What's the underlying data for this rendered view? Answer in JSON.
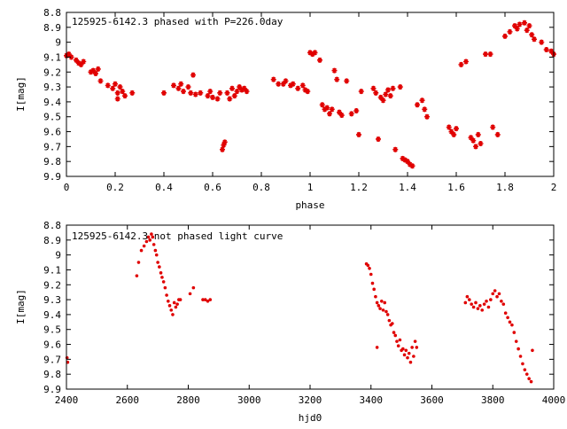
{
  "chart_data": [
    {
      "type": "scatter",
      "title": "125925-6142.3 phased with P=226.0day",
      "xlabel": "phase",
      "ylabel": "I[mag]",
      "xlim": [
        0,
        2
      ],
      "ylim": [
        8.8,
        9.9
      ],
      "y_inverted": true,
      "grid": false,
      "marker": "star",
      "color": "#e00000",
      "x_ticks": [
        "0",
        "0.2",
        "0.4",
        "0.6",
        "0.8",
        "1",
        "1.2",
        "1.4",
        "1.6",
        "1.8",
        "2"
      ],
      "y_ticks": [
        "8.8",
        "8.9",
        "9",
        "9.1",
        "9.2",
        "9.3",
        "9.4",
        "9.5",
        "9.6",
        "9.7",
        "9.8",
        "9.9"
      ],
      "series": [
        {
          "x": [
            0.0,
            0.01,
            0.02,
            0.04,
            0.05,
            0.06,
            0.07,
            0.1,
            0.11,
            0.12,
            0.13,
            0.14,
            0.17,
            0.19,
            0.2,
            0.21,
            0.21,
            0.22,
            0.23,
            0.24,
            0.27,
            0.4,
            0.44,
            0.46,
            0.47,
            0.48,
            0.5,
            0.51,
            0.52,
            0.53,
            0.55,
            0.58,
            0.59,
            0.6,
            0.62,
            0.63,
            0.64,
            0.645,
            0.65,
            0.66,
            0.67,
            0.68,
            0.69,
            0.7,
            0.71,
            0.72,
            0.73,
            0.74,
            0.85,
            0.87,
            0.89,
            0.9,
            0.92,
            0.93,
            0.95,
            0.97,
            0.98,
            0.99,
            1.0,
            1.01,
            1.02,
            1.04,
            1.05,
            1.06,
            1.07,
            1.08,
            1.09,
            1.1,
            1.11,
            1.12,
            1.13,
            1.15,
            1.17,
            1.19,
            1.2,
            1.21,
            1.26,
            1.27,
            1.28,
            1.29,
            1.3,
            1.31,
            1.32,
            1.33,
            1.34,
            1.35,
            1.37,
            1.38,
            1.39,
            1.4,
            1.41,
            1.42,
            1.44,
            1.46,
            1.47,
            1.48,
            1.57,
            1.58,
            1.59,
            1.6,
            1.62,
            1.64,
            1.66,
            1.67,
            1.68,
            1.69,
            1.7,
            1.72,
            1.74,
            1.75,
            1.77,
            1.8,
            1.82,
            1.84,
            1.85,
            1.86,
            1.88,
            1.89,
            1.9,
            1.91,
            1.92,
            1.95,
            1.97,
            1.99,
            2.0
          ],
          "y": [
            9.09,
            9.08,
            9.1,
            9.12,
            9.14,
            9.15,
            9.13,
            9.2,
            9.19,
            9.21,
            9.18,
            9.26,
            9.29,
            9.31,
            9.28,
            9.34,
            9.38,
            9.3,
            9.33,
            9.36,
            9.34,
            9.34,
            9.29,
            9.31,
            9.28,
            9.33,
            9.3,
            9.34,
            9.22,
            9.35,
            9.34,
            9.36,
            9.33,
            9.37,
            9.38,
            9.34,
            9.72,
            9.69,
            9.67,
            9.34,
            9.38,
            9.31,
            9.36,
            9.33,
            9.3,
            9.32,
            9.31,
            9.33,
            9.25,
            9.28,
            9.28,
            9.26,
            9.29,
            9.28,
            9.31,
            9.29,
            9.32,
            9.33,
            9.07,
            9.08,
            9.07,
            9.12,
            9.42,
            9.45,
            9.44,
            9.48,
            9.45,
            9.19,
            9.25,
            9.47,
            9.49,
            9.26,
            9.48,
            9.46,
            9.62,
            9.33,
            9.31,
            9.34,
            9.65,
            9.37,
            9.39,
            9.35,
            9.32,
            9.36,
            9.31,
            9.72,
            9.3,
            9.78,
            9.79,
            9.8,
            9.82,
            9.83,
            9.42,
            9.39,
            9.45,
            9.5,
            9.57,
            9.6,
            9.62,
            9.58,
            9.15,
            9.13,
            9.64,
            9.66,
            9.7,
            9.62,
            9.68,
            9.08,
            9.08,
            9.57,
            9.62,
            8.96,
            8.93,
            8.89,
            8.91,
            8.88,
            8.87,
            8.92,
            8.89,
            8.95,
            8.98,
            9.0,
            9.05,
            9.06,
            9.08
          ]
        }
      ]
    },
    {
      "type": "scatter",
      "title": "125925-6142.3 not phased light curve",
      "xlabel": "hjd0",
      "ylabel": "I[mag]",
      "xlim": [
        2400,
        4000
      ],
      "ylim": [
        8.8,
        9.9
      ],
      "y_inverted": true,
      "grid": false,
      "marker": "dot",
      "color": "#e00000",
      "x_ticks": [
        "2400",
        "2600",
        "2800",
        "3000",
        "3200",
        "3400",
        "3600",
        "3800",
        "4000"
      ],
      "y_ticks": [
        "8.8",
        "8.9",
        "9",
        "9.1",
        "9.2",
        "9.3",
        "9.4",
        "9.5",
        "9.6",
        "9.7",
        "9.8",
        "9.9"
      ],
      "series": [
        {
          "x": [
            2402,
            2404,
            2631,
            2637,
            2646,
            2655,
            2663,
            2669,
            2674,
            2679,
            2683,
            2687,
            2692,
            2696,
            2700,
            2705,
            2710,
            2714,
            2719,
            2724,
            2729,
            2734,
            2739,
            2744,
            2749,
            2754,
            2759,
            2764,
            2769,
            2774,
            2806,
            2817,
            2848,
            2856,
            2864,
            2872,
            3385,
            3390,
            3395,
            3400,
            3405,
            3410,
            3415,
            3420,
            3425,
            3430,
            3435,
            3440,
            3445,
            3450,
            3455,
            3460,
            3465,
            3470,
            3475,
            3480,
            3485,
            3490,
            3495,
            3500,
            3505,
            3510,
            3515,
            3520,
            3525,
            3530,
            3535,
            3540,
            3545,
            3550,
            3420,
            3710,
            3716,
            3723,
            3730,
            3737,
            3744,
            3751,
            3758,
            3765,
            3772,
            3779,
            3786,
            3793,
            3800,
            3807,
            3814,
            3821,
            3828,
            3835,
            3842,
            3849,
            3856,
            3863,
            3870,
            3877,
            3884,
            3891,
            3898,
            3905,
            3912,
            3919,
            3926,
            3930
          ],
          "y": [
            9.69,
            9.72,
            9.14,
            9.05,
            8.97,
            8.94,
            8.91,
            8.88,
            8.9,
            8.86,
            8.88,
            8.93,
            8.97,
            9.0,
            9.05,
            9.08,
            9.12,
            9.15,
            9.18,
            9.22,
            9.27,
            9.31,
            9.34,
            9.37,
            9.4,
            9.32,
            9.35,
            9.33,
            9.3,
            9.3,
            9.26,
            9.22,
            9.3,
            9.3,
            9.31,
            9.3,
            9.06,
            9.07,
            9.09,
            9.13,
            9.19,
            9.23,
            9.28,
            9.32,
            9.34,
            9.36,
            9.31,
            9.37,
            9.32,
            9.38,
            9.4,
            9.44,
            9.47,
            9.46,
            9.52,
            9.54,
            9.58,
            9.61,
            9.57,
            9.64,
            9.63,
            9.67,
            9.64,
            9.69,
            9.66,
            9.72,
            9.62,
            9.68,
            9.58,
            9.62,
            9.62,
            9.32,
            9.28,
            9.3,
            9.33,
            9.35,
            9.32,
            9.36,
            9.34,
            9.37,
            9.33,
            9.31,
            9.35,
            9.3,
            9.26,
            9.24,
            9.28,
            9.26,
            9.31,
            9.33,
            9.39,
            9.42,
            9.45,
            9.47,
            9.52,
            9.58,
            9.63,
            9.68,
            9.73,
            9.77,
            9.8,
            9.83,
            9.85,
            9.64
          ]
        }
      ]
    }
  ]
}
